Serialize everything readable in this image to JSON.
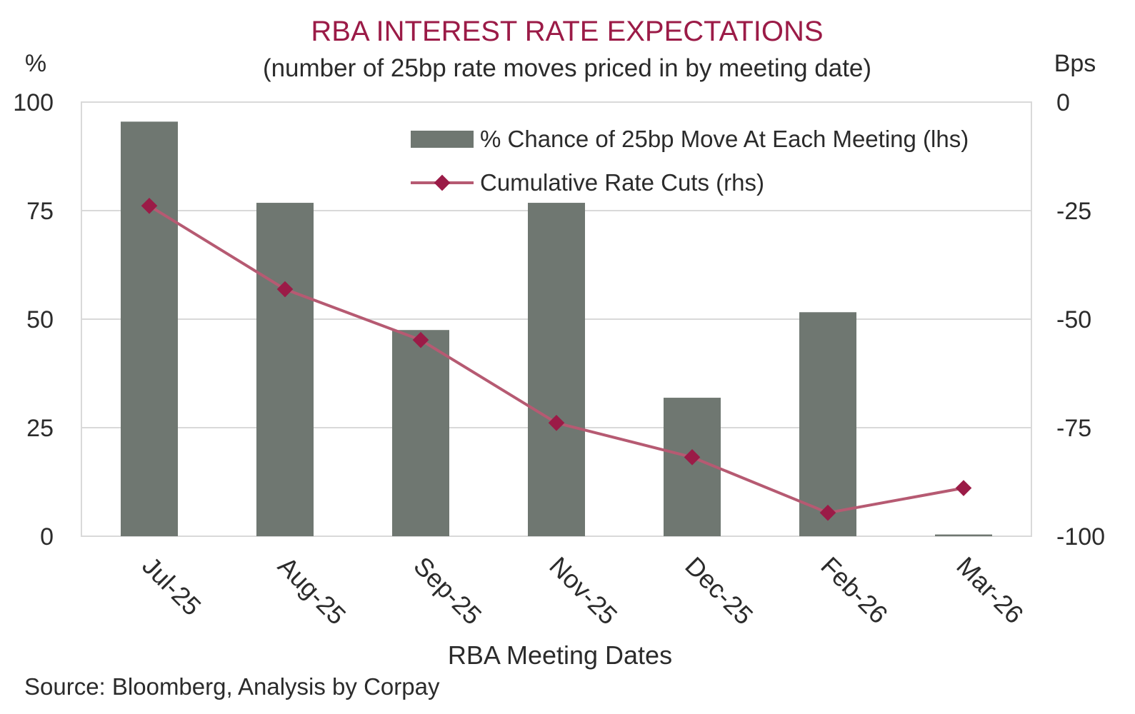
{
  "chart_data": {
    "type": "bar+line",
    "title": "RBA INTEREST RATE EXPECTATIONS",
    "subtitle": "(number of 25bp rate moves priced in by meeting date)",
    "xlabel": "RBA Meeting Dates",
    "y_left_unit": "%",
    "y_right_unit": "Bps",
    "categories": [
      "Jul-25",
      "Aug-25",
      "Sep-25",
      "Nov-25",
      "Dec-25",
      "Feb-26",
      "Mar-26"
    ],
    "y_left": {
      "lim": [
        0,
        100
      ],
      "ticks": [
        "0",
        "25",
        "50",
        "75",
        "100"
      ]
    },
    "y_right": {
      "lim": [
        -100,
        0
      ],
      "ticks": [
        "-100",
        "-75",
        "-50",
        "-25",
        "0"
      ]
    },
    "series": [
      {
        "name": "% Chance of 25bp Move At Each Meeting (lhs)",
        "type": "bar",
        "axis": "left",
        "color": "#6f7771",
        "values": [
          95.5,
          76.8,
          47.5,
          76.8,
          31.9,
          51.6,
          0.4
        ]
      },
      {
        "name": "Cumulative Rate Cuts (rhs)",
        "type": "line",
        "axis": "right",
        "color": "#b65a72",
        "marker_color": "#9b1b47",
        "values": [
          -23.9,
          -43.1,
          -54.8,
          -73.9,
          -81.8,
          -94.6,
          -88.9
        ]
      }
    ],
    "legend_position": "top-right",
    "grid": true,
    "source": "Source: Bloomberg, Analysis by Corpay"
  }
}
